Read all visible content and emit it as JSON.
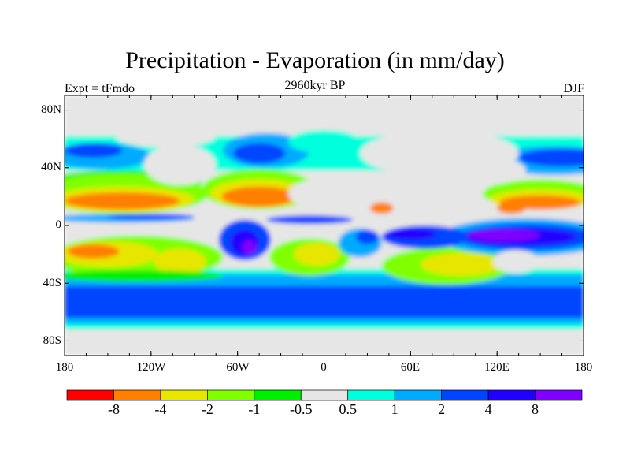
{
  "title": "Precipitation - Evaporation (in mm/day)",
  "subtitle_left": "Expt = tFmdo",
  "subtitle_center": "2960kyr BP",
  "subtitle_right": "DJF",
  "chart_data": {
    "type": "heatmap",
    "title": "Precipitation - Evaporation (in mm/day)",
    "projection": "cylindrical equidistant",
    "x_range": [
      -180,
      180
    ],
    "y_range": [
      -90,
      90
    ],
    "x_ticks": [
      "180",
      "120W",
      "60W",
      "0",
      "60E",
      "120E",
      "180"
    ],
    "y_ticks": [
      "80N",
      "40N",
      "0",
      "40S",
      "80S"
    ],
    "colorbar": {
      "levels": [
        "-8",
        "-4",
        "-2",
        "-1",
        "-0.5",
        "0.5",
        "1",
        "2",
        "4",
        "8"
      ],
      "colors": [
        "#ff0000",
        "#ff7f00",
        "#e6e600",
        "#80ff00",
        "#00ee00",
        "#e6e6e6",
        "#00ffdd",
        "#00aaff",
        "#0044ff",
        "#2200ff",
        "#8000ff"
      ]
    }
  }
}
